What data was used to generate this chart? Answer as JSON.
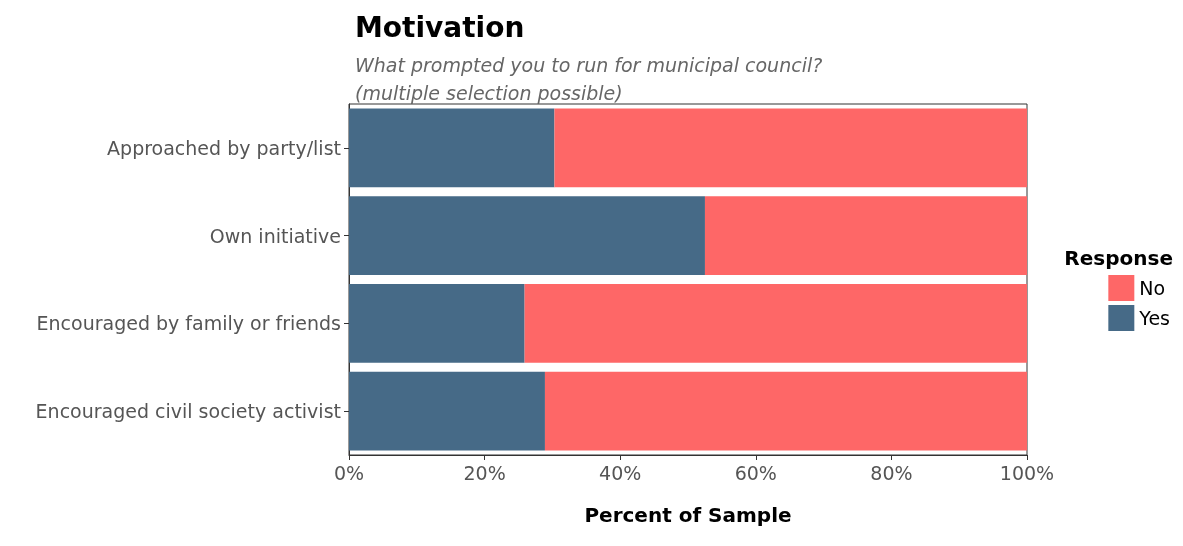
{
  "chart_data": {
    "type": "bar",
    "orientation": "horizontal",
    "stacked": true,
    "title": "Motivation",
    "subtitle": "What prompted you to run for municipal council?\n(multiple selection possible)",
    "xlabel": "Percent of Sample",
    "legend_title": "Response",
    "legend": "right",
    "grid": false,
    "categories": [
      "Approached by party/list",
      "Own initiative",
      "Encouraged by family or friends",
      "Encouraged civil society activist"
    ],
    "series": [
      {
        "name": "Yes",
        "color": "#466a87",
        "values": [
          30.3,
          52.5,
          25.9,
          28.9
        ]
      },
      {
        "name": "No",
        "color": "#fe6767",
        "values": [
          69.7,
          47.5,
          74.1,
          71.1
        ]
      }
    ],
    "xlim": [
      0,
      100
    ],
    "xticks": [
      {
        "value": 0,
        "label": "0%"
      },
      {
        "value": 20,
        "label": "20%"
      },
      {
        "value": 40,
        "label": "40%"
      },
      {
        "value": 60,
        "label": "60%"
      },
      {
        "value": 80,
        "label": "80%"
      },
      {
        "value": 100,
        "label": "100%"
      }
    ]
  }
}
